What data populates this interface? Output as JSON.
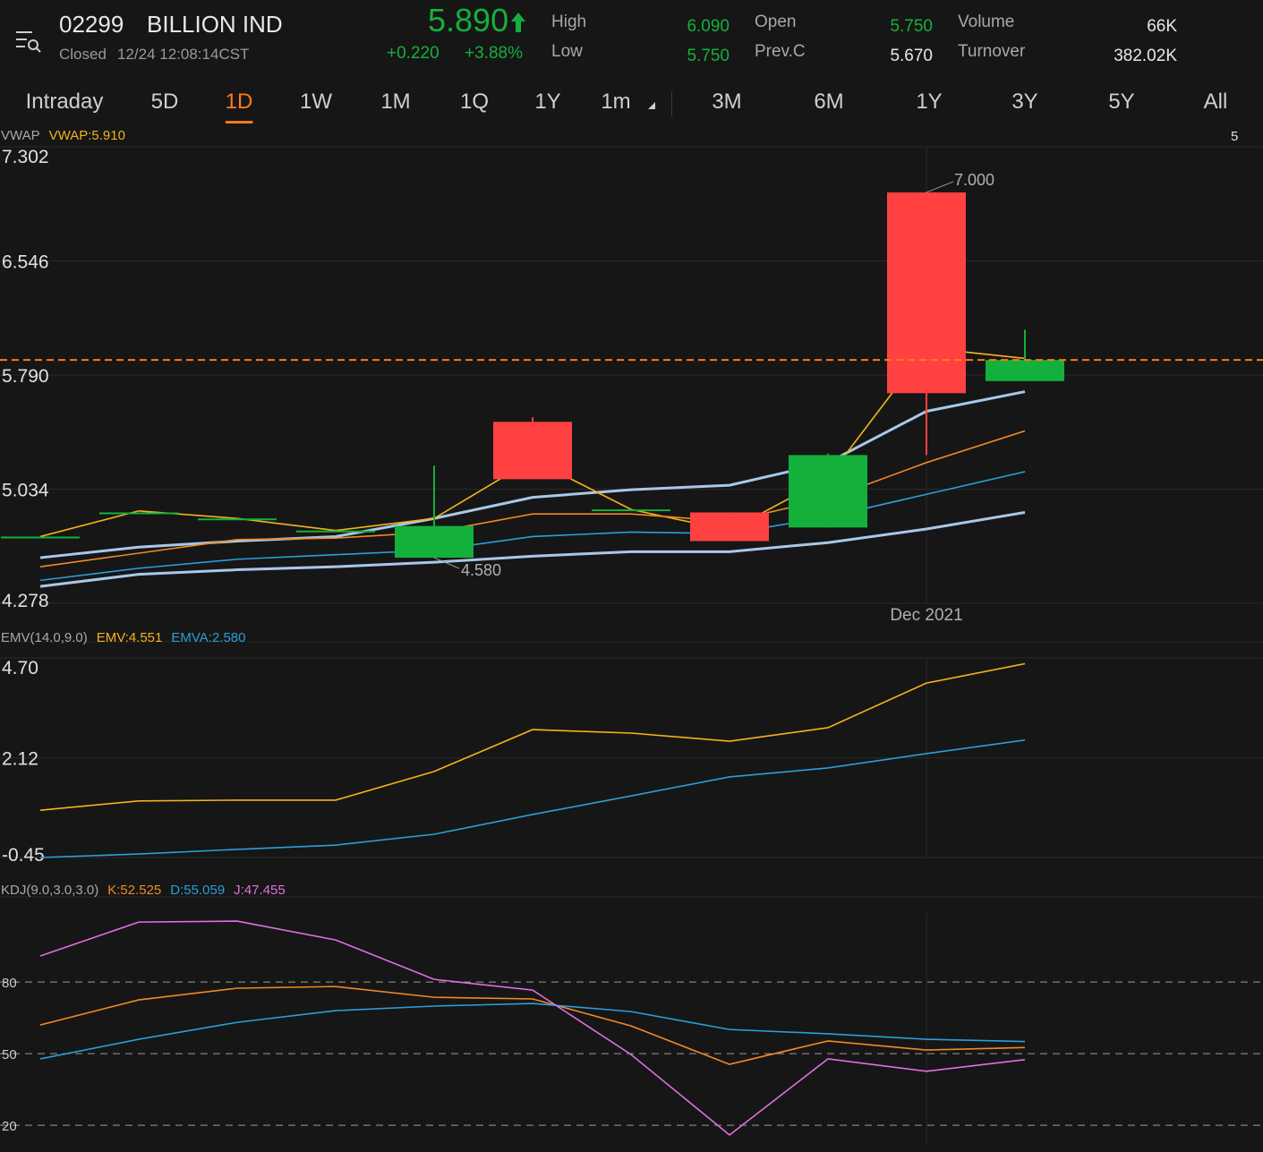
{
  "header": {
    "code": "02299",
    "name": "BILLION IND",
    "status": "Closed",
    "time": "12/24 12:08:14CST",
    "price": "5.890",
    "change": "+0.220",
    "change_pct": "+3.88%",
    "stats": [
      {
        "label": "High",
        "value": "6.090"
      },
      {
        "label": "Open",
        "value": "5.750"
      },
      {
        "label": "Volume",
        "value": "66K"
      },
      {
        "label": "Low",
        "value": "5.750"
      },
      {
        "label": "Prev.C",
        "value": "5.670"
      },
      {
        "label": "Turnover",
        "value": "382.02K"
      }
    ]
  },
  "tabs": [
    "Intraday",
    "5D",
    "1D",
    "1W",
    "1M",
    "1Q",
    "1Y",
    "1m",
    "3M",
    "6M",
    "1Y",
    "3Y",
    "5Y",
    "All"
  ],
  "active_tab": 2,
  "chart_data": [
    {
      "type": "candlestick",
      "indicator": "VWAP",
      "legend_text": "VWAP:5.910",
      "corner_label": "5",
      "categories": [
        null,
        null,
        null,
        null,
        null,
        null,
        null,
        null,
        null,
        "Dec 2021",
        null
      ],
      "open": [
        4.72,
        4.88,
        4.84,
        4.76,
        4.58,
        5.48,
        4.9,
        4.88,
        4.78,
        7.0,
        5.75
      ],
      "high": [
        4.72,
        4.88,
        4.84,
        4.76,
        5.19,
        5.51,
        4.9,
        4.88,
        5.27,
        7.0,
        6.09
      ],
      "low": [
        4.72,
        4.88,
        4.84,
        4.76,
        4.58,
        5.1,
        4.9,
        4.69,
        4.78,
        5.26,
        5.75
      ],
      "close": [
        4.72,
        4.88,
        4.84,
        4.76,
        4.79,
        5.1,
        4.9,
        4.69,
        5.26,
        5.67,
        5.89
      ],
      "up_color": "#14b03c",
      "down_color": "#ff4141",
      "price_line_color": "#ff7a1a",
      "annotations": [
        "7.000",
        "4.580"
      ],
      "series": [
        {
          "color": "#a8c8e8",
          "values": [
            4.58,
            4.65,
            4.69,
            4.72,
            4.84,
            4.98,
            5.03,
            5.06,
            5.21,
            5.55,
            5.68
          ]
        },
        {
          "color": "#a8c8e8",
          "values": [
            4.39,
            4.47,
            4.5,
            4.52,
            4.55,
            4.59,
            4.62,
            4.62,
            4.68,
            4.77,
            4.88
          ]
        },
        {
          "color": "#f5b31a",
          "values": [
            4.72,
            4.89,
            4.84,
            4.76,
            4.84,
            5.23,
            4.9,
            4.76,
            5.11,
            5.97,
            5.9
          ]
        },
        {
          "color": "#f08a24",
          "values": [
            4.52,
            4.61,
            4.7,
            4.71,
            4.75,
            4.87,
            4.87,
            4.82,
            4.97,
            5.21,
            5.42
          ]
        },
        {
          "color": "#2a9fd8",
          "values": [
            4.43,
            4.51,
            4.57,
            4.6,
            4.63,
            4.72,
            4.75,
            4.74,
            4.85,
            5.0,
            5.15
          ]
        }
      ],
      "ylim": [
        4.278,
        7.302
      ],
      "yticks": [
        7.302,
        6.546,
        {
          "value": 5.79,
          "label": "5.790"
        },
        5.034,
        4.278
      ]
    },
    {
      "type": "line",
      "indicator": "EMV(14.0,9.0)",
      "series": [
        {
          "name": "EMV:4.551",
          "color": "#f5b31a",
          "values": [
            0.77,
            1.01,
            1.03,
            1.03,
            1.77,
            2.85,
            2.76,
            2.55,
            2.9,
            4.05,
            4.551
          ]
        },
        {
          "name": "EMVA:2.580",
          "color": "#2a9fd8",
          "values": [
            -0.45,
            -0.36,
            -0.24,
            -0.13,
            0.15,
            0.66,
            1.14,
            1.63,
            1.86,
            2.23,
            2.58
          ]
        }
      ],
      "ylim": [
        -0.45,
        4.7
      ],
      "yticks": [
        {
          "value": 4.7,
          "label": "4.70"
        },
        2.12,
        -0.45
      ]
    },
    {
      "type": "line",
      "indicator": "KDJ(9.0,3.0,3.0)",
      "series": [
        {
          "name": "K:52.525",
          "color": "#f08a24",
          "values": [
            62.0,
            72.5,
            77.4,
            78.1,
            73.6,
            72.9,
            61.6,
            45.5,
            55.3,
            51.5,
            52.525
          ]
        },
        {
          "name": "D:55.059",
          "color": "#2a9fd8",
          "values": [
            47.8,
            56.0,
            63.1,
            68.0,
            69.9,
            71.0,
            67.6,
            60.1,
            58.3,
            56.0,
            55.059
          ]
        },
        {
          "name": "J:47.455",
          "color": "#e070e0",
          "values": [
            90.9,
            105.1,
            105.5,
            97.6,
            81.1,
            76.6,
            49.6,
            15.9,
            47.8,
            42.6,
            47.455
          ]
        }
      ],
      "ylim": [
        11.4,
        108.9
      ],
      "yticks": [
        80,
        50,
        20
      ]
    }
  ]
}
